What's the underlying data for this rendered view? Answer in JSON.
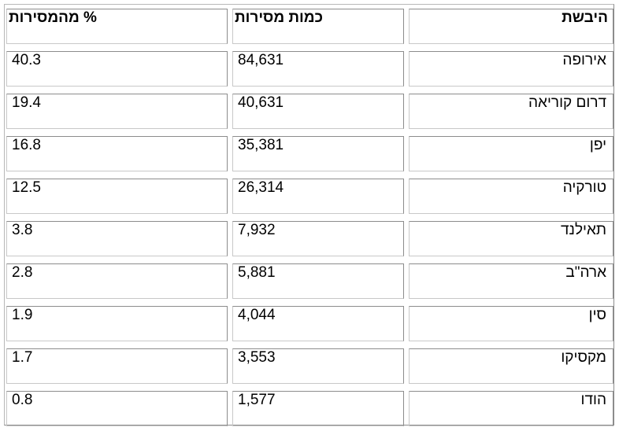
{
  "table": {
    "headers": {
      "continent": "היבשת",
      "quantity": "כמות מסירות",
      "percent": "% מהמסירות"
    },
    "rows": [
      {
        "continent": "אירופה",
        "quantity": "84,631",
        "percent": "40.3"
      },
      {
        "continent": "דרום קוריאה",
        "quantity": "40,631",
        "percent": "19.4"
      },
      {
        "continent": "יפן",
        "quantity": "35,381",
        "percent": "16.8"
      },
      {
        "continent": "טורקיה",
        "quantity": "26,314",
        "percent": "12.5"
      },
      {
        "continent": "תאילנד",
        "quantity": "7,932",
        "percent": "3.8"
      },
      {
        "continent": "ארה\"ב",
        "quantity": "5,881",
        "percent": "2.8"
      },
      {
        "continent": "סין",
        "quantity": "4,044",
        "percent": "1.9"
      },
      {
        "continent": "מקסיקו",
        "quantity": "3,553",
        "percent": "1.7"
      },
      {
        "continent": "הודו",
        "quantity": "1,577",
        "percent": "0.8"
      }
    ]
  }
}
